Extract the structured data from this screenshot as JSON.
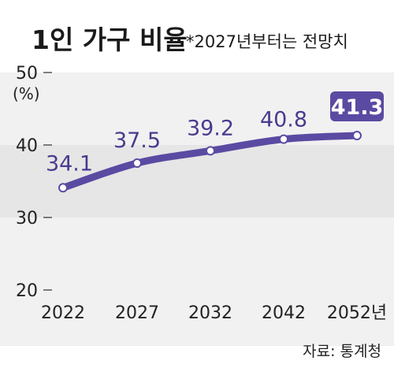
{
  "chart_data": {
    "type": "line",
    "title": "1인 가구 비율",
    "subtitle": "*2027년부터는 전망치",
    "ylabel": "(%)",
    "x": [
      "2022",
      "2027",
      "2032",
      "2042",
      "2052년"
    ],
    "series": [
      {
        "values": [
          34.1,
          37.5,
          39.2,
          40.8,
          41.3
        ]
      }
    ],
    "data_labels": [
      "34.1",
      "37.5",
      "39.2",
      "40.8",
      "41.3"
    ],
    "y_ticks": [
      "50",
      "40",
      "30",
      "20"
    ],
    "ylim": [
      20,
      50
    ],
    "grid": false,
    "source": "자료: 통계청",
    "colors": {
      "line": "#5b4aa2",
      "band_light": "#f1f1f1",
      "band_dark": "#e6e6e6",
      "highlight_box": "#5b4aa2"
    }
  }
}
